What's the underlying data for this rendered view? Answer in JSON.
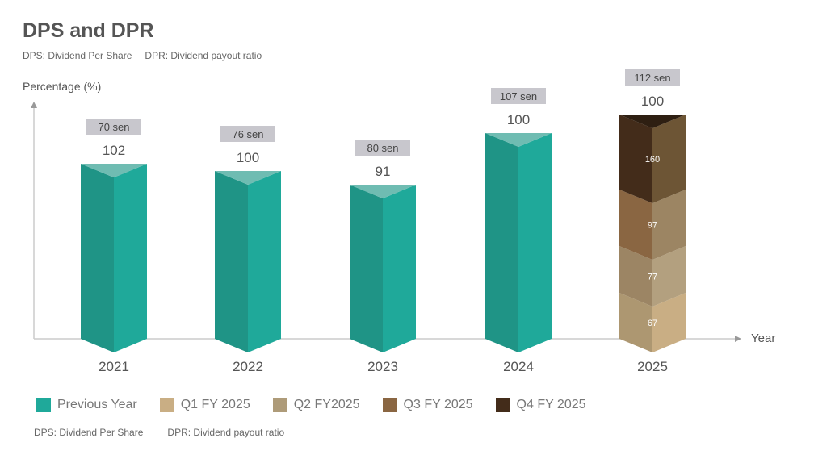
{
  "title": "DPS and DPR",
  "subtitle": {
    "dps": "DPS: Dividend Per Share",
    "dpr": "DPR: Dividend payout ratio"
  },
  "footer": {
    "dps": "DPS: Dividend Per Share",
    "dpr": "DPR: Dividend payout ratio"
  },
  "chart_data": {
    "type": "bar",
    "title": "DPS and DPR",
    "ylabel": "Percentage (%)",
    "xlabel": "Year",
    "categories": [
      "2021",
      "2022",
      "2023",
      "2024",
      "2025"
    ],
    "dpr": [
      "102",
      "100",
      "91",
      "100",
      "100"
    ],
    "dps": [
      "70 sen",
      "76 sen",
      "80 sen",
      "107 sen",
      "112 sen"
    ],
    "stack_2025": [
      {
        "name": "Q1 FY 2025",
        "value": "67"
      },
      {
        "name": "Q2 FY2025",
        "value": "77"
      },
      {
        "name": "Q3 FY 2025",
        "value": "97"
      },
      {
        "name": "Q4 FY 2025",
        "value": "160"
      }
    ],
    "legend": [
      {
        "label": "Previous Year",
        "color": "#1fa99a"
      },
      {
        "label": "Q1 FY 2025",
        "color": "#c9ae84"
      },
      {
        "label": "Q2 FY2025",
        "color": "#ae9b79"
      },
      {
        "label": "Q3 FY 2025",
        "color": "#8a6642"
      },
      {
        "label": "Q4 FY 2025",
        "color": "#432c1a"
      }
    ]
  }
}
